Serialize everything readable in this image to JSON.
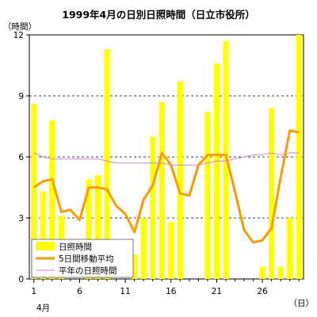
{
  "chart_data": {
    "type": "bar",
    "title": "1999年4月の日別日照時間（日立市役所）",
    "ylabel": "（時間）",
    "xlabel_month": "4月",
    "xunit": "（日）",
    "ylim": [
      0,
      12
    ],
    "yticks": [
      0,
      3,
      6,
      9,
      12
    ],
    "x": [
      1,
      2,
      3,
      4,
      5,
      6,
      7,
      8,
      9,
      10,
      11,
      12,
      13,
      14,
      15,
      16,
      17,
      18,
      19,
      20,
      21,
      22,
      23,
      24,
      25,
      26,
      27,
      28,
      29,
      30
    ],
    "xtick_labels": [
      1,
      6,
      11,
      16,
      21,
      26
    ],
    "grid": "dashed horizontal at 3, 6, 9",
    "legend_position": "bottom-left",
    "series": [
      {
        "name": "日照時間",
        "type": "bar",
        "color": "#ffff00",
        "values": [
          8.6,
          4.3,
          7.8,
          3.1,
          0.0,
          0.0,
          4.9,
          5.1,
          11.3,
          0.0,
          0.0,
          1.2,
          3.0,
          7.0,
          8.7,
          2.8,
          9.7,
          0.0,
          0.0,
          8.2,
          10.6,
          11.7,
          0.0,
          0.0,
          0.0,
          0.6,
          8.4,
          0.6,
          3.0,
          12.0
        ]
      },
      {
        "name": "5日間移動平均",
        "type": "line",
        "color": "#ff9900",
        "values": [
          4.5,
          4.8,
          4.9,
          3.3,
          3.4,
          2.9,
          4.5,
          4.5,
          4.4,
          3.6,
          3.2,
          2.3,
          3.9,
          4.6,
          6.2,
          5.6,
          4.2,
          4.1,
          5.6,
          6.1,
          6.1,
          6.1,
          4.3,
          2.4,
          1.8,
          1.9,
          2.5,
          5.0,
          7.3,
          7.2
        ]
      },
      {
        "name": "平年の日照時間",
        "type": "line",
        "color": "#cc88cc",
        "values": [
          6.2,
          6.0,
          5.9,
          5.9,
          5.9,
          5.9,
          5.9,
          5.9,
          5.8,
          5.7,
          5.7,
          5.7,
          5.7,
          5.7,
          5.7,
          5.6,
          5.6,
          5.6,
          5.6,
          5.7,
          5.8,
          5.8,
          5.9,
          6.0,
          6.1,
          6.1,
          6.2,
          6.1,
          6.2,
          6.2
        ]
      }
    ]
  }
}
